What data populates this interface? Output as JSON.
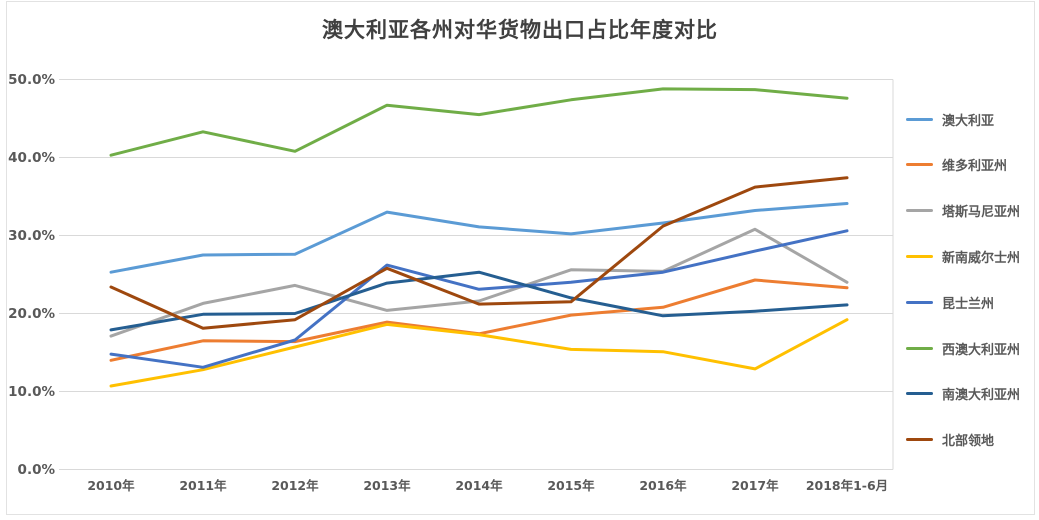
{
  "chart_data": {
    "type": "line",
    "title": "澳大利亚各州对华货物出口占比年度对比",
    "categories": [
      "2010年",
      "2011年",
      "2012年",
      "2013年",
      "2014年",
      "2015年",
      "2016年",
      "2017年",
      "2018年1-6月"
    ],
    "series": [
      {
        "name": "澳大利亚",
        "color": "#5B9BD5",
        "values": [
          25.3,
          27.5,
          27.6,
          33.0,
          31.1,
          30.2,
          31.6,
          33.2,
          34.1
        ]
      },
      {
        "name": "维多利亚州",
        "color": "#ED7D31",
        "values": [
          14.0,
          16.5,
          16.4,
          18.9,
          17.4,
          19.8,
          20.8,
          24.3,
          23.3
        ]
      },
      {
        "name": "塔斯马尼亚州",
        "color": "#A5A5A5",
        "values": [
          17.1,
          21.3,
          23.6,
          20.4,
          21.6,
          25.6,
          25.4,
          30.8,
          24.0
        ]
      },
      {
        "name": "新南威尔士州",
        "color": "#FFC000",
        "values": [
          10.7,
          12.8,
          15.7,
          18.6,
          17.3,
          15.4,
          15.1,
          12.9,
          19.2
        ]
      },
      {
        "name": "昆士兰州",
        "color": "#4472C4",
        "values": [
          14.8,
          13.1,
          16.6,
          26.2,
          23.1,
          24.0,
          25.3,
          28.0,
          30.6
        ]
      },
      {
        "name": "西澳大利亚州",
        "color": "#70AD47",
        "values": [
          40.3,
          43.3,
          40.8,
          46.7,
          45.5,
          47.4,
          48.8,
          48.7,
          47.6
        ]
      },
      {
        "name": "南澳大利亚州",
        "color": "#255E91",
        "values": [
          17.9,
          19.9,
          20.0,
          23.9,
          25.3,
          22.0,
          19.7,
          20.3,
          21.1
        ]
      },
      {
        "name": "北部领地",
        "color": "#9E480E",
        "values": [
          23.4,
          18.1,
          19.2,
          25.8,
          21.2,
          21.5,
          31.2,
          36.2,
          37.4
        ]
      }
    ],
    "y_ticks_top_to_bottom": [
      "50.0%",
      "40.0%",
      "30.0%",
      "20.0%",
      "10.0%",
      "0.0%"
    ],
    "ylim": [
      0,
      50
    ],
    "y_tick_step": 10,
    "grid": true,
    "legend_position": "right",
    "colors": {
      "grid": "#D9D9D9",
      "axis_text": "#595959",
      "title_text": "#404040",
      "background": "#FFFFFF"
    }
  }
}
